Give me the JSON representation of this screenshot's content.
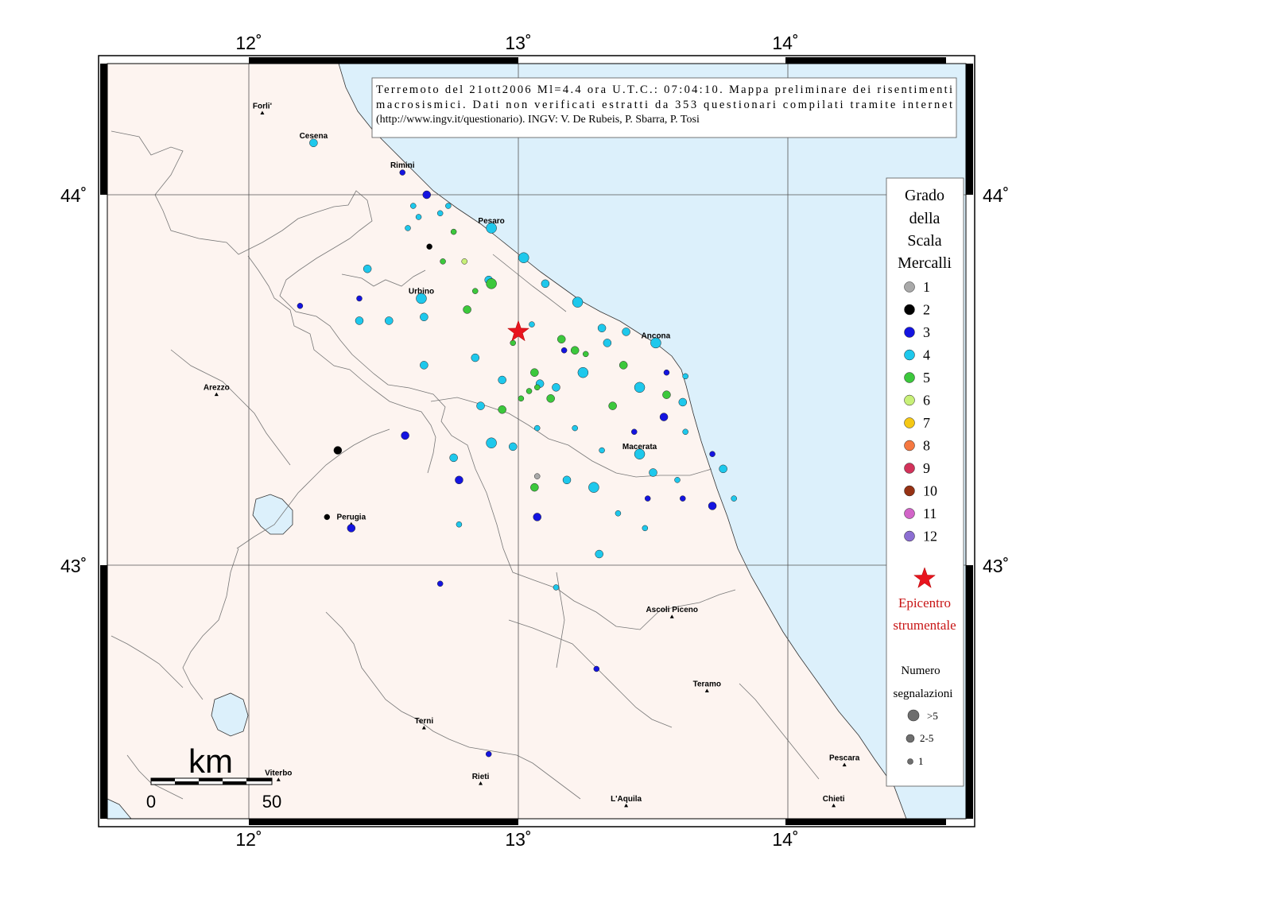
{
  "map": {
    "lon_ticks": [
      "12˚",
      "13˚",
      "14˚"
    ],
    "lat_ticks": [
      "44˚",
      "43˚"
    ],
    "info_lines": [
      "Terremoto del 21ott2006 Ml=4.4 ora U.T.C.: 07:04:10.  Mappa preliminare dei risentimenti",
      "macrosismici.  Dati non verificati estratti da 353 questionari compilati tramite internet",
      "(http://www.ingv.it/questionario).  INGV: V.  De Rubeis, P.  Sbarra, P.  Tosi"
    ],
    "scale_bar": {
      "unit": "km",
      "start": "0",
      "end": "50"
    },
    "colors": {
      "sea": "#dcf0fb",
      "land": "#fdf4f0",
      "epicenter": "#e8141e"
    },
    "cities": [
      {
        "name": "Forli'",
        "lon": 12.05,
        "lat": 44.22
      },
      {
        "name": "Cesena",
        "lon": 12.24,
        "lat": 44.14
      },
      {
        "name": "Rimini",
        "lon": 12.57,
        "lat": 44.06
      },
      {
        "name": "Pesaro",
        "lon": 12.9,
        "lat": 43.91
      },
      {
        "name": "Urbino",
        "lon": 12.64,
        "lat": 43.72
      },
      {
        "name": "Ancona",
        "lon": 13.51,
        "lat": 43.6
      },
      {
        "name": "Arezzo",
        "lon": 11.88,
        "lat": 43.46
      },
      {
        "name": "Macerata",
        "lon": 13.45,
        "lat": 43.3
      },
      {
        "name": "Perugia",
        "lon": 12.38,
        "lat": 43.11
      },
      {
        "name": "Ascoli Piceno",
        "lon": 13.57,
        "lat": 42.86
      },
      {
        "name": "Teramo",
        "lon": 13.7,
        "lat": 42.66
      },
      {
        "name": "Terni",
        "lon": 12.65,
        "lat": 42.56
      },
      {
        "name": "Pescara",
        "lon": 14.21,
        "lat": 42.46
      },
      {
        "name": "Viterbo",
        "lon": 12.11,
        "lat": 42.42
      },
      {
        "name": "Rieti",
        "lon": 12.86,
        "lat": 42.41
      },
      {
        "name": "L'Aquila",
        "lon": 13.4,
        "lat": 42.35
      },
      {
        "name": "Chieti",
        "lon": 14.17,
        "lat": 42.35
      }
    ],
    "epicenter": {
      "lon": 13.0,
      "lat": 43.63
    },
    "observations": [
      {
        "lon": 12.24,
        "lat": 44.14,
        "grade": 4,
        "size": 2
      },
      {
        "lon": 12.57,
        "lat": 44.06,
        "grade": 3,
        "size": 1
      },
      {
        "lon": 12.66,
        "lat": 44.0,
        "grade": 3,
        "size": 2
      },
      {
        "lon": 12.61,
        "lat": 43.97,
        "grade": 4,
        "size": 1
      },
      {
        "lon": 12.63,
        "lat": 43.94,
        "grade": 4,
        "size": 1
      },
      {
        "lon": 12.59,
        "lat": 43.91,
        "grade": 4,
        "size": 1
      },
      {
        "lon": 12.71,
        "lat": 43.95,
        "grade": 4,
        "size": 1
      },
      {
        "lon": 12.74,
        "lat": 43.97,
        "grade": 4,
        "size": 1
      },
      {
        "lon": 12.76,
        "lat": 43.9,
        "grade": 5,
        "size": 1
      },
      {
        "lon": 12.67,
        "lat": 43.86,
        "grade": 2,
        "size": 1
      },
      {
        "lon": 12.9,
        "lat": 43.91,
        "grade": 4,
        "size": 3
      },
      {
        "lon": 13.02,
        "lat": 43.83,
        "grade": 4,
        "size": 3
      },
      {
        "lon": 12.44,
        "lat": 43.8,
        "grade": 4,
        "size": 2
      },
      {
        "lon": 12.72,
        "lat": 43.82,
        "grade": 5,
        "size": 1
      },
      {
        "lon": 12.8,
        "lat": 43.82,
        "grade": 6,
        "size": 1
      },
      {
        "lon": 12.89,
        "lat": 43.77,
        "grade": 4,
        "size": 2
      },
      {
        "lon": 12.9,
        "lat": 43.76,
        "grade": 5,
        "size": 3
      },
      {
        "lon": 12.84,
        "lat": 43.74,
        "grade": 5,
        "size": 1
      },
      {
        "lon": 12.41,
        "lat": 43.72,
        "grade": 3,
        "size": 1
      },
      {
        "lon": 12.19,
        "lat": 43.7,
        "grade": 3,
        "size": 1
      },
      {
        "lon": 12.64,
        "lat": 43.72,
        "grade": 4,
        "size": 3
      },
      {
        "lon": 13.1,
        "lat": 43.76,
        "grade": 4,
        "size": 2
      },
      {
        "lon": 13.22,
        "lat": 43.71,
        "grade": 4,
        "size": 3
      },
      {
        "lon": 12.81,
        "lat": 43.69,
        "grade": 5,
        "size": 2
      },
      {
        "lon": 12.41,
        "lat": 43.66,
        "grade": 4,
        "size": 2
      },
      {
        "lon": 12.52,
        "lat": 43.66,
        "grade": 4,
        "size": 2
      },
      {
        "lon": 12.65,
        "lat": 43.67,
        "grade": 4,
        "size": 2
      },
      {
        "lon": 13.05,
        "lat": 43.65,
        "grade": 4,
        "size": 1
      },
      {
        "lon": 13.31,
        "lat": 43.64,
        "grade": 4,
        "size": 2
      },
      {
        "lon": 13.4,
        "lat": 43.63,
        "grade": 4,
        "size": 2
      },
      {
        "lon": 13.51,
        "lat": 43.6,
        "grade": 4,
        "size": 3
      },
      {
        "lon": 12.98,
        "lat": 43.6,
        "grade": 5,
        "size": 1
      },
      {
        "lon": 13.16,
        "lat": 43.61,
        "grade": 5,
        "size": 2
      },
      {
        "lon": 13.33,
        "lat": 43.6,
        "grade": 4,
        "size": 2
      },
      {
        "lon": 13.17,
        "lat": 43.58,
        "grade": 3,
        "size": 1
      },
      {
        "lon": 13.21,
        "lat": 43.58,
        "grade": 5,
        "size": 2
      },
      {
        "lon": 13.25,
        "lat": 43.57,
        "grade": 5,
        "size": 1
      },
      {
        "lon": 12.84,
        "lat": 43.56,
        "grade": 4,
        "size": 2
      },
      {
        "lon": 12.65,
        "lat": 43.54,
        "grade": 4,
        "size": 2
      },
      {
        "lon": 13.39,
        "lat": 43.54,
        "grade": 5,
        "size": 2
      },
      {
        "lon": 13.24,
        "lat": 43.52,
        "grade": 4,
        "size": 3
      },
      {
        "lon": 13.55,
        "lat": 43.52,
        "grade": 3,
        "size": 1
      },
      {
        "lon": 13.62,
        "lat": 43.51,
        "grade": 4,
        "size": 1
      },
      {
        "lon": 12.94,
        "lat": 43.5,
        "grade": 4,
        "size": 2
      },
      {
        "lon": 13.06,
        "lat": 43.52,
        "grade": 5,
        "size": 2
      },
      {
        "lon": 13.08,
        "lat": 43.49,
        "grade": 4,
        "size": 2
      },
      {
        "lon": 13.14,
        "lat": 43.48,
        "grade": 4,
        "size": 2
      },
      {
        "lon": 13.45,
        "lat": 43.48,
        "grade": 4,
        "size": 3
      },
      {
        "lon": 13.04,
        "lat": 43.47,
        "grade": 5,
        "size": 1
      },
      {
        "lon": 13.07,
        "lat": 43.48,
        "grade": 5,
        "size": 1
      },
      {
        "lon": 13.55,
        "lat": 43.46,
        "grade": 5,
        "size": 2
      },
      {
        "lon": 13.61,
        "lat": 43.44,
        "grade": 4,
        "size": 2
      },
      {
        "lon": 13.01,
        "lat": 43.45,
        "grade": 5,
        "size": 1
      },
      {
        "lon": 13.12,
        "lat": 43.45,
        "grade": 5,
        "size": 2
      },
      {
        "lon": 12.86,
        "lat": 43.43,
        "grade": 4,
        "size": 2
      },
      {
        "lon": 12.94,
        "lat": 43.42,
        "grade": 5,
        "size": 2
      },
      {
        "lon": 13.35,
        "lat": 43.43,
        "grade": 5,
        "size": 2
      },
      {
        "lon": 13.54,
        "lat": 43.4,
        "grade": 3,
        "size": 2
      },
      {
        "lon": 13.07,
        "lat": 43.37,
        "grade": 4,
        "size": 1
      },
      {
        "lon": 13.21,
        "lat": 43.37,
        "grade": 4,
        "size": 1
      },
      {
        "lon": 13.43,
        "lat": 43.36,
        "grade": 3,
        "size": 1
      },
      {
        "lon": 13.62,
        "lat": 43.36,
        "grade": 4,
        "size": 1
      },
      {
        "lon": 12.58,
        "lat": 43.35,
        "grade": 3,
        "size": 2
      },
      {
        "lon": 12.9,
        "lat": 43.33,
        "grade": 4,
        "size": 3
      },
      {
        "lon": 12.98,
        "lat": 43.32,
        "grade": 4,
        "size": 2
      },
      {
        "lon": 13.31,
        "lat": 43.31,
        "grade": 4,
        "size": 1
      },
      {
        "lon": 13.45,
        "lat": 43.3,
        "grade": 4,
        "size": 3
      },
      {
        "lon": 13.72,
        "lat": 43.3,
        "grade": 3,
        "size": 1
      },
      {
        "lon": 12.33,
        "lat": 43.31,
        "grade": 2,
        "size": 2
      },
      {
        "lon": 12.76,
        "lat": 43.29,
        "grade": 4,
        "size": 2
      },
      {
        "lon": 13.5,
        "lat": 43.25,
        "grade": 4,
        "size": 2
      },
      {
        "lon": 13.59,
        "lat": 43.23,
        "grade": 4,
        "size": 1
      },
      {
        "lon": 13.76,
        "lat": 43.26,
        "grade": 4,
        "size": 2
      },
      {
        "lon": 13.07,
        "lat": 43.24,
        "grade": 1,
        "size": 1
      },
      {
        "lon": 12.78,
        "lat": 43.23,
        "grade": 3,
        "size": 2
      },
      {
        "lon": 13.18,
        "lat": 43.23,
        "grade": 4,
        "size": 2
      },
      {
        "lon": 13.28,
        "lat": 43.21,
        "grade": 4,
        "size": 3
      },
      {
        "lon": 13.06,
        "lat": 43.21,
        "grade": 5,
        "size": 2
      },
      {
        "lon": 13.48,
        "lat": 43.18,
        "grade": 3,
        "size": 1
      },
      {
        "lon": 13.61,
        "lat": 43.18,
        "grade": 3,
        "size": 1
      },
      {
        "lon": 13.8,
        "lat": 43.18,
        "grade": 4,
        "size": 1
      },
      {
        "lon": 13.72,
        "lat": 43.16,
        "grade": 3,
        "size": 2
      },
      {
        "lon": 13.37,
        "lat": 43.14,
        "grade": 4,
        "size": 1
      },
      {
        "lon": 13.07,
        "lat": 43.13,
        "grade": 3,
        "size": 2
      },
      {
        "lon": 12.29,
        "lat": 43.13,
        "grade": 2,
        "size": 1
      },
      {
        "lon": 12.78,
        "lat": 43.11,
        "grade": 4,
        "size": 1
      },
      {
        "lon": 12.38,
        "lat": 43.1,
        "grade": 3,
        "size": 2
      },
      {
        "lon": 13.47,
        "lat": 43.1,
        "grade": 4,
        "size": 1
      },
      {
        "lon": 13.3,
        "lat": 43.03,
        "grade": 4,
        "size": 2
      },
      {
        "lon": 12.71,
        "lat": 42.95,
        "grade": 3,
        "size": 1
      },
      {
        "lon": 13.14,
        "lat": 42.94,
        "grade": 4,
        "size": 1
      },
      {
        "lon": 13.29,
        "lat": 42.72,
        "grade": 3,
        "size": 1
      },
      {
        "lon": 12.89,
        "lat": 42.49,
        "grade": 3,
        "size": 1
      }
    ]
  },
  "legend": {
    "title_lines": [
      "Grado",
      "della",
      "Scala",
      "Mercalli"
    ],
    "grades": [
      {
        "label": "1",
        "color": "#a9a9a9"
      },
      {
        "label": "2",
        "color": "#000000"
      },
      {
        "label": "3",
        "color": "#1414e0"
      },
      {
        "label": "4",
        "color": "#1ec8ec"
      },
      {
        "label": "5",
        "color": "#3cc83c"
      },
      {
        "label": "6",
        "color": "#c8f078"
      },
      {
        "label": "7",
        "color": "#f5c814"
      },
      {
        "label": "8",
        "color": "#f57841"
      },
      {
        "label": "9",
        "color": "#d2325a"
      },
      {
        "label": "10",
        "color": "#963214"
      },
      {
        "label": "11",
        "color": "#d264c8"
      },
      {
        "label": "12",
        "color": "#8c6ed2"
      }
    ],
    "epicenter_lines": [
      "Epicentro",
      "strumentale"
    ],
    "count_title_lines": [
      "Numero",
      "segnalazioni"
    ],
    "count_items": [
      ">5",
      "2-5",
      "1"
    ]
  }
}
